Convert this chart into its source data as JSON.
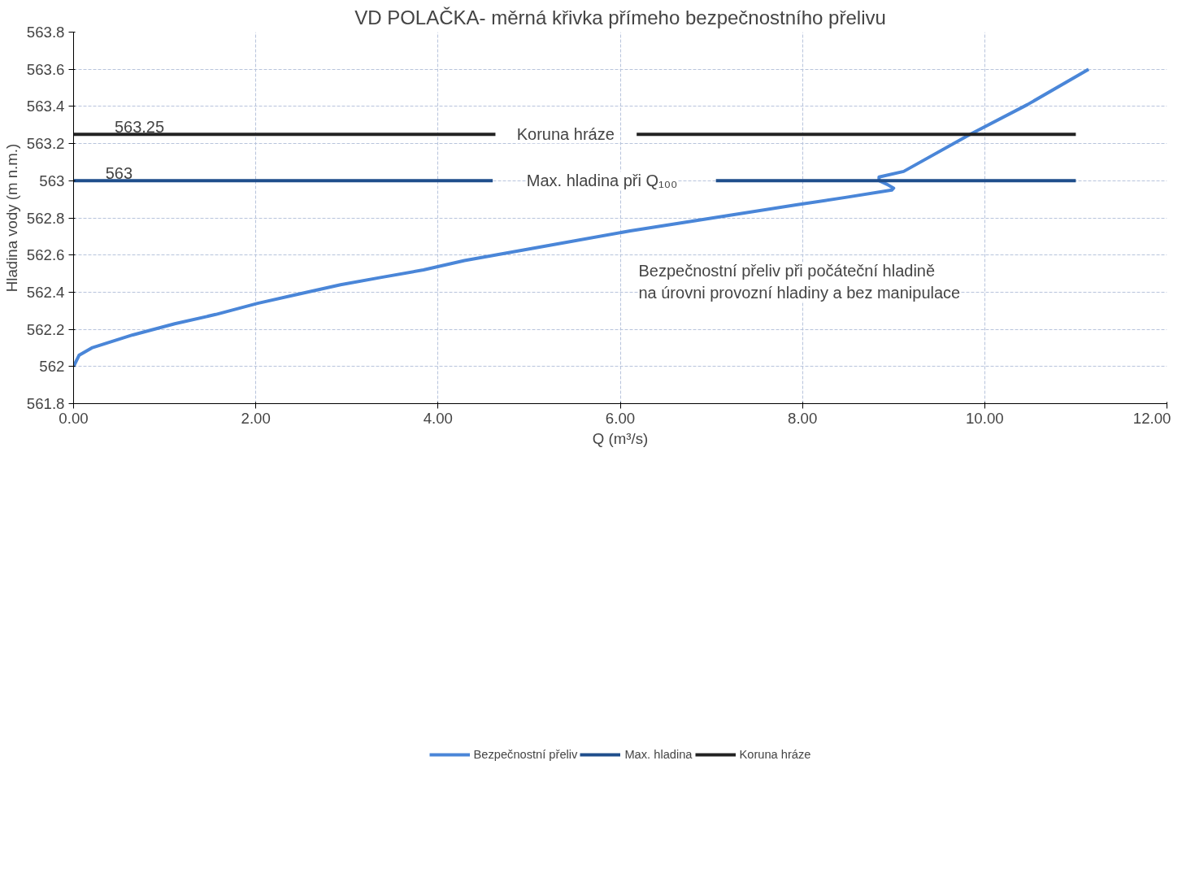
{
  "chart_data": {
    "type": "line",
    "title": "VD POLAČKA- měrná křivka přímeho bezpečnostního přelivu",
    "xlabel": "Q (m³/s)",
    "ylabel": "Hladina vody (m n.m.)",
    "xlim": [
      0,
      12
    ],
    "ylim": [
      561.8,
      563.8
    ],
    "xticks": [
      {
        "value": 0,
        "label": "0.00"
      },
      {
        "value": 2,
        "label": "2.00"
      },
      {
        "value": 4,
        "label": "4.00"
      },
      {
        "value": 6,
        "label": "6.00"
      },
      {
        "value": 8,
        "label": "8.00"
      },
      {
        "value": 10,
        "label": "10.00"
      },
      {
        "value": 12,
        "label": "12.00"
      }
    ],
    "yticks": [
      561.8,
      562,
      562.2,
      562.4,
      562.6,
      562.8,
      563,
      563.2,
      563.4,
      563.6,
      563.8
    ],
    "grid": true,
    "legend": "bottom",
    "line_style": "solid",
    "marker": "none",
    "series": [
      {
        "name": "Bezpečnostní přeliv",
        "color": "#4a86d8",
        "x": [
          0,
          0.06,
          0.2,
          0.65,
          1.11,
          1.56,
          2.02,
          2.47,
          2.93,
          3.38,
          3.84,
          4.29,
          5.2,
          6.11,
          7.02,
          7.93,
          8.47,
          8.98,
          9.0,
          8.93,
          8.84,
          8.84,
          9.11,
          9.84,
          10.47,
          11.14
        ],
        "values": [
          562.0,
          562.06,
          562.1,
          562.17,
          562.23,
          562.28,
          562.34,
          562.39,
          562.44,
          562.48,
          562.52,
          562.57,
          562.65,
          562.73,
          562.8,
          562.87,
          562.91,
          562.95,
          562.96,
          562.98,
          563.0,
          563.02,
          563.05,
          563.25,
          563.41,
          563.6
        ]
      },
      {
        "name": "Max. hladina",
        "color": "#1f4e8c",
        "x": [
          0,
          4.6,
          5.8,
          7.05,
          11
        ],
        "values": [
          563,
          563,
          null,
          563,
          563
        ]
      },
      {
        "name": "Koruna hráze",
        "color": "#222222",
        "x": [
          0,
          4.63,
          5.4,
          6.18,
          11
        ],
        "values": [
          563.25,
          563.25,
          null,
          563.25,
          563.25
        ]
      }
    ],
    "annotations": [
      {
        "text": "563.25",
        "x": 0.45,
        "y": 563.25
      },
      {
        "text": "563",
        "x": 0.35,
        "y": 563
      },
      "Koruna hráze",
      "Max. hladina při Q₁₀₀",
      "Bezpečnostní přeliv při počáteční hladině\nna úrovni provozní hladiny a bez manipulace"
    ]
  }
}
